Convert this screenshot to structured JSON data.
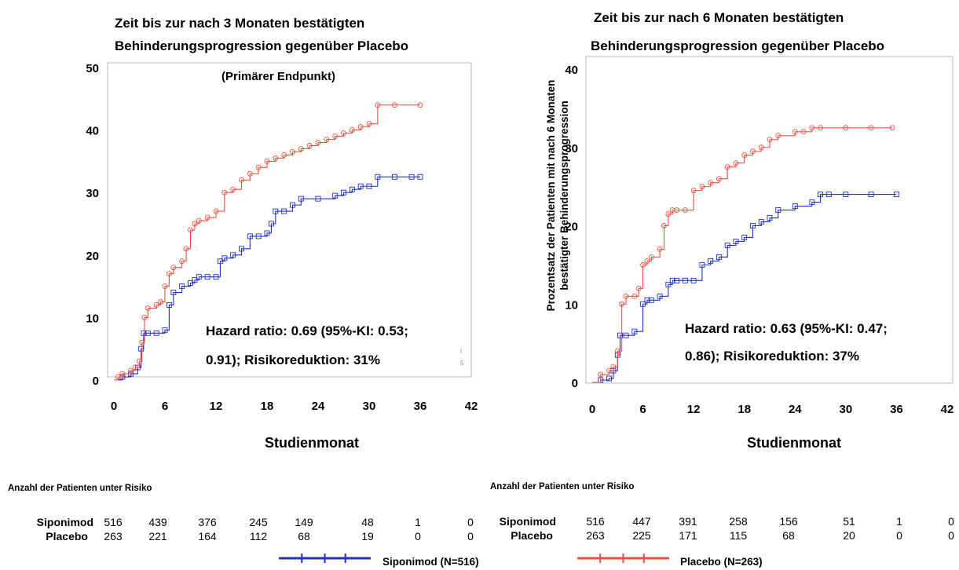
{
  "colors": {
    "siponimod": "#2030c8",
    "placebo": "#f05040",
    "frame": "#b8b8b8"
  },
  "chart_data": [
    {
      "type": "line",
      "title": [
        "Zeit bis zur nach 3 Monaten bestätigten",
        "Behinderungsprogression gegenüber Placebo"
      ],
      "subtitle": "(Primärer Endpunkt)",
      "xlabel": "Studienmonat",
      "ylabel": "",
      "xlim": [
        0,
        42
      ],
      "ylim": [
        0,
        50
      ],
      "xticks": [
        "0",
        "6",
        "12",
        "18",
        "24",
        "30",
        "36",
        "42"
      ],
      "yticks": [
        "0",
        "10",
        "20",
        "30",
        "40",
        "50"
      ],
      "annotation": [
        "Hazard ratio: 0.69 (95%-KI: 0.53;",
        "0.91); Risikoreduktion: 31%"
      ],
      "corner_marks": [
        "I",
        "5"
      ],
      "series": [
        {
          "name": "Siponimod (N=516)",
          "x": [
            0,
            1,
            2,
            2.8,
            3.2,
            3.5,
            4,
            5,
            6,
            6.5,
            7,
            8,
            9,
            9.5,
            10,
            11,
            12,
            12.5,
            13,
            14,
            15,
            16,
            17,
            18,
            18.5,
            19,
            20,
            21,
            22,
            24,
            26,
            27,
            28,
            29,
            30,
            31,
            33,
            35,
            36
          ],
          "y": [
            0,
            0.5,
            1,
            2,
            5,
            7.5,
            7.5,
            7.5,
            8,
            12,
            14,
            15,
            15.5,
            16,
            16.5,
            16.5,
            16.5,
            19,
            19.5,
            20,
            21,
            23,
            23,
            23.5,
            25,
            27,
            27,
            28,
            29,
            29,
            29.5,
            30,
            30.5,
            31,
            31,
            32.5,
            32.5,
            32.5,
            32.5
          ]
        },
        {
          "name": "Placebo (N=263)",
          "x": [
            0,
            0.5,
            1,
            2,
            2.5,
            3,
            3.3,
            3.6,
            4,
            5,
            5.5,
            6,
            6.5,
            7,
            8,
            8.5,
            9,
            9.5,
            10,
            11,
            12,
            13,
            14,
            15,
            16,
            17,
            18,
            19,
            20,
            21,
            22,
            23,
            24,
            25,
            26,
            27,
            28,
            29,
            30,
            31,
            33,
            36
          ],
          "y": [
            0,
            0.5,
            1,
            1.5,
            2,
            3,
            6,
            10,
            11.5,
            12,
            12.5,
            15,
            17,
            18,
            19,
            21,
            24,
            25,
            25.5,
            26,
            27,
            30,
            30.5,
            32,
            33,
            34,
            35,
            35.5,
            36,
            36.5,
            37,
            37.5,
            38,
            38.5,
            39,
            39.5,
            40,
            40.5,
            41,
            44,
            44,
            44
          ]
        }
      ]
    },
    {
      "type": "line",
      "title": [
        "Zeit bis zur nach 6 Monaten bestätigten",
        "Behinderungsprogression gegenüber Placebo"
      ],
      "xlabel": "Studienmonat",
      "ylabel": [
        "Prozentsatz der Patienten mit nach 6 Monaten",
        "bestätigter Behinderungsprogression"
      ],
      "xlim": [
        0,
        42
      ],
      "ylim": [
        0,
        40
      ],
      "xticks": [
        "0",
        "6",
        "12",
        "18",
        "24",
        "30",
        "36",
        "42"
      ],
      "yticks": [
        "0",
        "10",
        "20",
        "30",
        "40"
      ],
      "annotation": [
        "Hazard ratio: 0.63 (95%-KI: 0.47;",
        "0.86); Risikoreduktion: 37%"
      ],
      "series": [
        {
          "name": "Siponimod (N=516)",
          "x": [
            0,
            1,
            2,
            2.5,
            3,
            3.3,
            4,
            5,
            6,
            6.5,
            7,
            8,
            9,
            9.5,
            10,
            11,
            12,
            13,
            14,
            15,
            16,
            17,
            18,
            19,
            20,
            21,
            22,
            24,
            26,
            27,
            28,
            30,
            33,
            36
          ],
          "y": [
            0,
            0.3,
            0.5,
            1.5,
            3.5,
            6,
            6,
            6.5,
            10,
            10.5,
            10.5,
            11,
            12.5,
            13,
            13,
            13,
            13,
            15,
            15.5,
            16,
            17.5,
            18,
            18.5,
            20,
            20.5,
            21,
            22,
            22.5,
            23,
            24,
            24,
            24,
            24,
            24
          ]
        },
        {
          "name": "Placebo (N=263)",
          "x": [
            0,
            1,
            2,
            2.5,
            3,
            3.5,
            4,
            5,
            5.5,
            6,
            6.5,
            7,
            8,
            8.5,
            9,
            9.5,
            10,
            11,
            12,
            13,
            14,
            15,
            16,
            17,
            18,
            19,
            20,
            21,
            22,
            24,
            25,
            26,
            27,
            30,
            33,
            35.5
          ],
          "y": [
            0,
            1,
            1.5,
            2,
            4,
            10,
            11,
            11,
            12,
            15,
            15.5,
            16,
            17,
            20,
            21.5,
            22,
            22,
            22,
            24.5,
            25,
            25.5,
            26,
            27.5,
            28,
            29,
            29.5,
            30,
            31,
            31.5,
            32,
            32,
            32.5,
            32.5,
            32.5,
            32.5,
            32.5
          ]
        }
      ]
    }
  ],
  "risk_tables": [
    {
      "header": "Anzahl der Patienten unter Risiko",
      "rows": [
        {
          "label": "Siponimod",
          "values": [
            "516",
            "439",
            "376",
            "245",
            "149",
            "48",
            "1",
            "0"
          ]
        },
        {
          "label": "Placebo",
          "values": [
            "263",
            "221",
            "164",
            "112",
            "68",
            "19",
            "0",
            "0"
          ]
        }
      ]
    },
    {
      "header": "Anzahl der Patienten unter Risiko",
      "rows": [
        {
          "label": "Siponimod",
          "values": [
            "516",
            "447",
            "391",
            "258",
            "156",
            "51",
            "1",
            "0"
          ]
        },
        {
          "label": "Placebo",
          "values": [
            "263",
            "225",
            "171",
            "115",
            "68",
            "20",
            "0",
            "0"
          ]
        }
      ]
    }
  ],
  "legend": [
    {
      "label": "Siponimod (N=516)",
      "color_key": "siponimod"
    },
    {
      "label": "Placebo (N=263)",
      "color_key": "placebo"
    }
  ]
}
